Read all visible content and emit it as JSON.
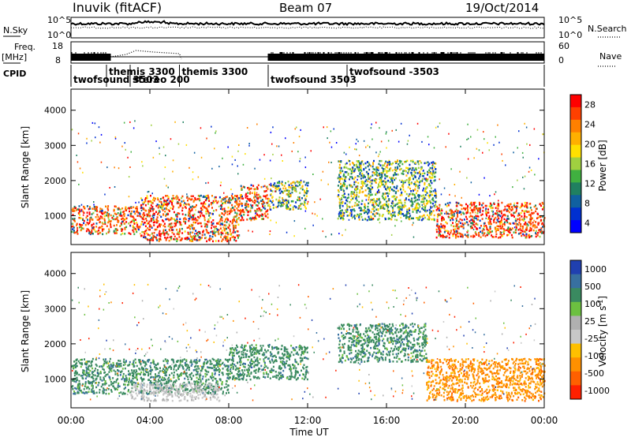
{
  "header": {
    "station": "Inuvik (fitACF)",
    "beam": "Beam 07",
    "date": "19/Oct/2014"
  },
  "panels": {
    "nsky_label": "N.Sky",
    "nsky_ticks": [
      "10^5",
      "10^0"
    ],
    "nsearch_label": "N.Search",
    "freq_label": "Freq.",
    "freq_unit": "[MHz]",
    "freq_ticks": [
      "18",
      "8"
    ],
    "nave_label": "Nave",
    "nave_ticks": [
      "60",
      "0"
    ],
    "cpid_label": "CPID"
  },
  "cpid_segments": [
    {
      "label": "twofsound 3503",
      "start": 0.0
    },
    {
      "label": "themis 3300",
      "start": 1.8
    },
    {
      "label": "stereo 200",
      "start": 3.0
    },
    {
      "label": "themis 3300",
      "start": 5.5
    },
    {
      "label": "twofsound 3503",
      "start": 10.0
    },
    {
      "label": "twofsound -3503",
      "start": 14.0
    }
  ],
  "power_colorbar": {
    "title": "Power [dB]",
    "ticks": [
      "28",
      "24",
      "20",
      "16",
      "12",
      "8",
      "4"
    ],
    "colors": [
      "#ff0000",
      "#ff4000",
      "#ff8000",
      "#ffb000",
      "#ffe000",
      "#a0d040",
      "#40b040",
      "#208060",
      "#1060a0",
      "#0030d0",
      "#0000ff"
    ]
  },
  "velocity_colorbar": {
    "title": "Velocity [m s",
    "title_sup": "-1",
    "title_end": "]",
    "ticks": [
      "1000",
      "500",
      "100",
      "25",
      "-25",
      "-100",
      "-500",
      "-1000"
    ],
    "colors": [
      "#2040b0",
      "#3870a0",
      "#3a8a60",
      "#6cc040",
      "#b0b0b0",
      "#c8c8c8",
      "#ffc000",
      "#ff9000",
      "#ff6000",
      "#ff2000"
    ]
  },
  "chart_data": {
    "type": "heatmap",
    "xlabel": "Time UT",
    "x_ticks": [
      "00:00",
      "04:00",
      "08:00",
      "12:00",
      "16:00",
      "20:00",
      "00:00"
    ],
    "xlim_hours": [
      0,
      24
    ],
    "ylabel": "Slant Range [km]",
    "y_ticks": [
      1000,
      2000,
      3000,
      4000
    ],
    "ylim_km": [
      180,
      4600
    ],
    "power_scatter_bands": [
      {
        "t0": 0.0,
        "t1": 3.5,
        "r0": 500,
        "r1": 1300,
        "level": "high"
      },
      {
        "t0": 3.5,
        "t1": 8.5,
        "r0": 300,
        "r1": 1600,
        "level": "high"
      },
      {
        "t0": 8.5,
        "t1": 10.0,
        "r0": 900,
        "r1": 1900,
        "level": "high"
      },
      {
        "t0": 10.0,
        "t1": 12.0,
        "r0": 1200,
        "r1": 2000,
        "level": "mid"
      },
      {
        "t0": 13.5,
        "t1": 18.5,
        "r0": 900,
        "r1": 2600,
        "level": "mid"
      },
      {
        "t0": 18.5,
        "t1": 24.0,
        "r0": 400,
        "r1": 1400,
        "level": "high"
      }
    ],
    "velocity_scatter_bands": [
      {
        "t0": 0.0,
        "t1": 8.0,
        "r0": 600,
        "r1": 1600,
        "sign": "positive"
      },
      {
        "t0": 3.0,
        "t1": 7.5,
        "r0": 400,
        "r1": 900,
        "sign": "near_zero"
      },
      {
        "t0": 8.0,
        "t1": 12.0,
        "r0": 1000,
        "r1": 2000,
        "sign": "positive"
      },
      {
        "t0": 13.5,
        "t1": 18.0,
        "r0": 1500,
        "r1": 2600,
        "sign": "positive"
      },
      {
        "t0": 18.0,
        "t1": 24.0,
        "r0": 400,
        "r1": 1600,
        "sign": "negative"
      }
    ]
  }
}
